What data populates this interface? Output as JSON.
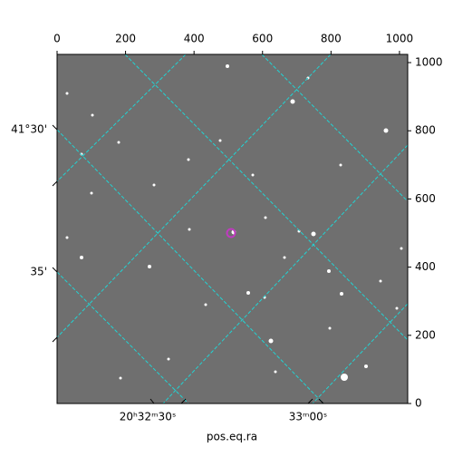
{
  "chart_data": {
    "type": "image",
    "xlabel": "pos.eq.ra",
    "xlim": [
      0,
      1024
    ],
    "xticks": [
      0,
      200,
      400,
      600,
      800,
      1000
    ],
    "ylim": [
      0,
      1024
    ],
    "yticks": [
      0,
      200,
      400,
      600,
      800,
      1000
    ],
    "ra_ticks": [
      "20ʰ32ᵐ30ˢ",
      "33ᵐ00ˢ"
    ],
    "dec_ticks": [
      "41°30'",
      "35'"
    ]
  }
}
